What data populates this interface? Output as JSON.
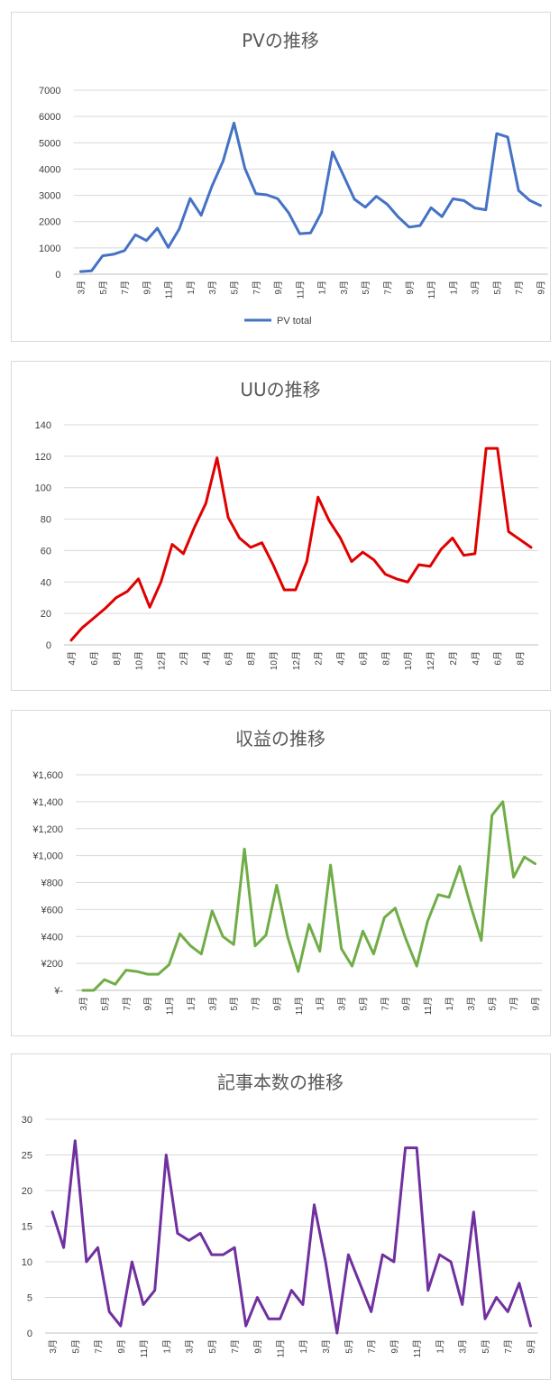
{
  "charts": [
    {
      "type": "line",
      "title": "PVの推移",
      "color": "#4472C4",
      "ylim": [
        0,
        7000
      ],
      "yticks": [
        0,
        1000,
        2000,
        3000,
        4000,
        5000,
        6000,
        7000
      ],
      "ytick_labels": [
        "0",
        "1000",
        "2000",
        "3000",
        "4000",
        "5000",
        "6000",
        "7000"
      ],
      "grid": true,
      "legend": "bottom",
      "series": [
        {
          "name": "PV total",
          "values": [
            100,
            130,
            700,
            760,
            900,
            1500,
            1280,
            1750,
            1020,
            1720,
            2880,
            2240,
            3360,
            4300,
            5750,
            4030,
            3060,
            3020,
            2870,
            2330,
            1540,
            1570,
            2350,
            4650,
            3760,
            2850,
            2550,
            2960,
            2660,
            2180,
            1790,
            1850,
            2530,
            2190,
            2870,
            2800,
            2520,
            2450,
            5350,
            5220,
            3180,
            2810,
            2610
          ]
        }
      ],
      "x_labels": [
        "3月",
        "5月",
        "7月",
        "9月",
        "11月",
        "1月",
        "3月",
        "5月",
        "7月",
        "9月",
        "11月",
        "1月",
        "3月",
        "5月",
        "7月",
        "9月",
        "11月",
        "1月",
        "3月",
        "5月",
        "7月",
        "9月"
      ]
    },
    {
      "type": "line",
      "title": "UUの推移",
      "color": "#E00000",
      "ylim": [
        0,
        140
      ],
      "yticks": [
        0,
        20,
        40,
        60,
        80,
        100,
        120,
        140
      ],
      "ytick_labels": [
        "0",
        "20",
        "40",
        "60",
        "80",
        "100",
        "120",
        "140"
      ],
      "grid": true,
      "series": [
        {
          "values": [
            3,
            11,
            17,
            23,
            30,
            34,
            42,
            24,
            40,
            64,
            58,
            75,
            90,
            119,
            81,
            68,
            62,
            65,
            51,
            35,
            35,
            53,
            94,
            79,
            68,
            53,
            59,
            54,
            45,
            42,
            40,
            51,
            50,
            61,
            68,
            57,
            58,
            125,
            125,
            72,
            67,
            62
          ]
        }
      ],
      "x_labels": [
        "4月",
        "6月",
        "8月",
        "10月",
        "12月",
        "2月",
        "4月",
        "6月",
        "8月",
        "10月",
        "12月",
        "2月",
        "4月",
        "6月",
        "8月",
        "10月",
        "12月",
        "2月",
        "4月",
        "6月",
        "8月"
      ]
    },
    {
      "type": "line",
      "title": "収益の推移",
      "color": "#70AD47",
      "ylim": [
        0,
        1600
      ],
      "yticks": [
        0,
        200,
        400,
        600,
        800,
        1000,
        1200,
        1400,
        1600
      ],
      "ytick_labels": [
        "¥-",
        "¥200",
        "¥400",
        "¥600",
        "¥800",
        "¥1,000",
        "¥1,200",
        "¥1,400",
        "¥1,600"
      ],
      "grid": true,
      "series": [
        {
          "values": [
            0,
            0,
            80,
            45,
            150,
            140,
            120,
            120,
            190,
            420,
            330,
            270,
            590,
            400,
            340,
            1050,
            330,
            410,
            780,
            400,
            140,
            490,
            290,
            930,
            310,
            180,
            440,
            270,
            540,
            610,
            380,
            180,
            510,
            710,
            690,
            920,
            630,
            370,
            1300,
            1400,
            840,
            990,
            940
          ]
        }
      ],
      "x_labels": [
        "3月",
        "5月",
        "7月",
        "9月",
        "11月",
        "1月",
        "3月",
        "5月",
        "7月",
        "9月",
        "11月",
        "1月",
        "3月",
        "5月",
        "7月",
        "9月",
        "11月",
        "1月",
        "3月",
        "5月",
        "7月",
        "9月"
      ]
    },
    {
      "type": "line",
      "title": "記事本数の推移",
      "color": "#7030A0",
      "ylim": [
        0,
        30
      ],
      "yticks": [
        0,
        5,
        10,
        15,
        20,
        25,
        30
      ],
      "ytick_labels": [
        "0",
        "5",
        "10",
        "15",
        "20",
        "25",
        "30"
      ],
      "grid": true,
      "series": [
        {
          "values": [
            17,
            12,
            27,
            10,
            12,
            3,
            1,
            10,
            4,
            6,
            25,
            14,
            13,
            14,
            11,
            11,
            12,
            1,
            5,
            2,
            2,
            6,
            4,
            18,
            10,
            0,
            11,
            7,
            3,
            11,
            10,
            26,
            26,
            6,
            11,
            10,
            4,
            17,
            2,
            5,
            3,
            7,
            1
          ]
        }
      ],
      "x_labels": [
        "3月",
        "5月",
        "7月",
        "9月",
        "11月",
        "1月",
        "3月",
        "5月",
        "7月",
        "9月",
        "11月",
        "1月",
        "3月",
        "5月",
        "7月",
        "9月",
        "11月",
        "1月",
        "3月",
        "5月",
        "7月",
        "9月"
      ]
    }
  ]
}
